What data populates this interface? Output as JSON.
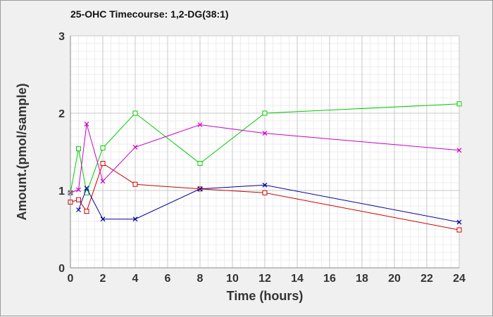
{
  "chart_data": {
    "type": "line",
    "title": "25-OHC Timecourse: 1,2-DG(38:1)",
    "xlabel": "Time (hours)",
    "ylabel": "Amount.(pmol/sample)",
    "xlim": [
      0,
      24
    ],
    "ylim": [
      0,
      3
    ],
    "x_ticks": [
      "0",
      "2",
      "4",
      "6",
      "8",
      "10",
      "12",
      "14",
      "16",
      "18",
      "20",
      "22",
      "24"
    ],
    "y_ticks": [
      "0",
      "1",
      "2",
      "3"
    ],
    "grid": true,
    "legend": "none",
    "series": [
      {
        "color": "#cc0000",
        "marker": "square",
        "x": [
          0,
          0.5,
          1,
          2,
          4,
          8,
          12,
          24
        ],
        "y": [
          0.85,
          0.88,
          0.73,
          1.35,
          1.08,
          1.02,
          0.97,
          0.49
        ]
      },
      {
        "color": "#00cc00",
        "marker": "square",
        "x": [
          0,
          0.5,
          1,
          2,
          4,
          8,
          12,
          24
        ],
        "y": [
          0.97,
          1.54,
          0.97,
          1.55,
          2.0,
          1.35,
          2.0,
          2.12
        ]
      },
      {
        "color": "#000099",
        "marker": "x",
        "x": [
          0.5,
          1,
          2,
          4,
          8,
          12,
          24
        ],
        "y": [
          0.75,
          1.03,
          0.63,
          0.63,
          1.02,
          1.07,
          0.59
        ]
      },
      {
        "color": "#cc00cc",
        "marker": "x",
        "x": [
          0,
          0.5,
          1,
          2,
          4,
          8,
          12,
          24
        ],
        "y": [
          0.97,
          1.01,
          1.86,
          1.12,
          1.56,
          1.85,
          1.74,
          1.52
        ]
      }
    ]
  }
}
